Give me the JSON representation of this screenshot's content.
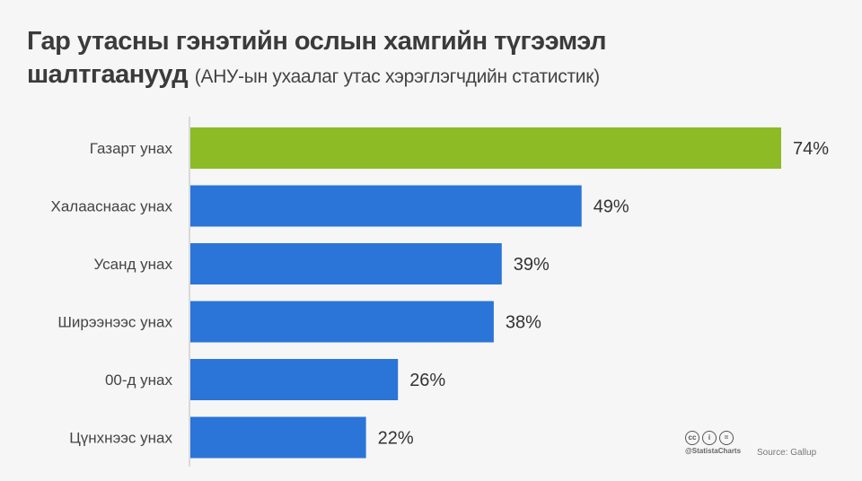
{
  "title": "Гар утасны гэнэтийн ослын хамгийн түгээмэл шалтгаанууд",
  "title_line1": "Гар утасны гэнэтийн ослын хамгийн түгээмэл",
  "title_line2": "шалтгаанууд",
  "subtitle": "(АНУ-ын ухаалаг утас хэрэглэгчдийн статистик)",
  "footer": {
    "handle": "@StatistaCharts",
    "source": "Source: Gallup",
    "license_icons": [
      "cc-icon",
      "by-icon",
      "nd-icon"
    ]
  },
  "colors": {
    "highlight": "#8cbb26",
    "bar": "#2b74d8"
  },
  "chart_data": {
    "type": "bar",
    "orientation": "horizontal",
    "categories": [
      "Газарт унах",
      "Халааснаас унах",
      "Усанд унах",
      "Ширээнээс унах",
      "00-д унах",
      "Цүнхнээс унах"
    ],
    "values": [
      74,
      49,
      39,
      38,
      26,
      22
    ],
    "labels": [
      "74%",
      "49%",
      "39%",
      "38%",
      "26%",
      "22%"
    ],
    "unit": "%",
    "highlight_index": 0,
    "xlim": [
      0,
      74
    ],
    "grid": false
  }
}
